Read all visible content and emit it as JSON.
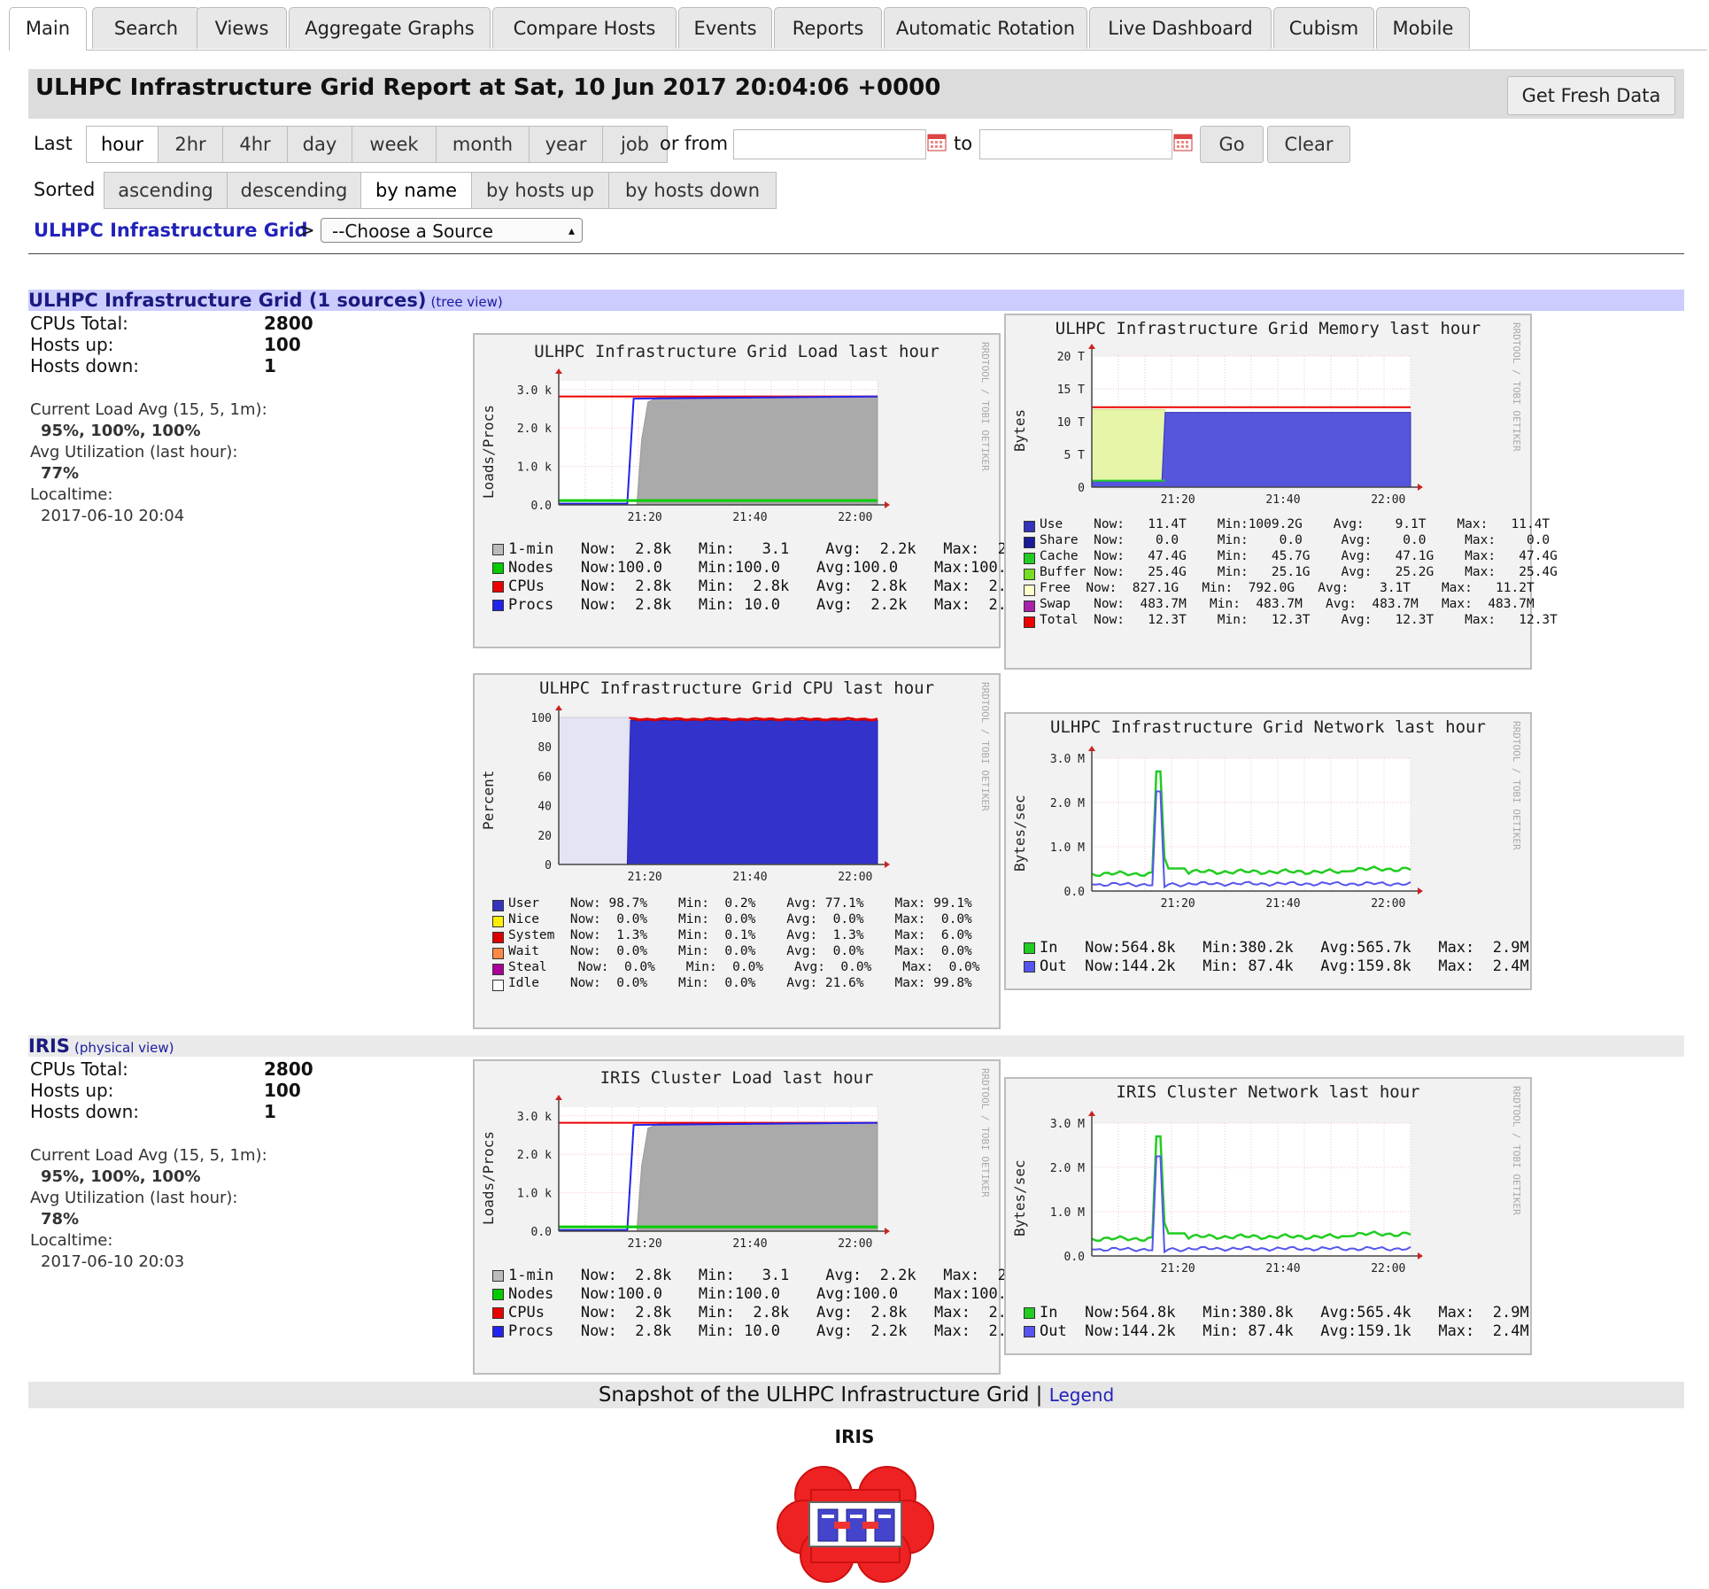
{
  "tabs": [
    {
      "label": "Main",
      "active": true
    },
    {
      "label": "Search"
    },
    {
      "label": "Views"
    },
    {
      "label": "Aggregate Graphs"
    },
    {
      "label": "Compare Hosts"
    },
    {
      "label": "Events"
    },
    {
      "label": "Reports"
    },
    {
      "label": "Automatic Rotation"
    },
    {
      "label": "Live Dashboard"
    },
    {
      "label": "Cubism"
    },
    {
      "label": "Mobile"
    }
  ],
  "header": {
    "title": "ULHPC Infrastructure Grid Report at Sat, 10 Jun 2017 20:04:06 +0000",
    "fresh_button": "Get Fresh Data"
  },
  "range": {
    "last_label": "Last",
    "options": [
      "hour",
      "2hr",
      "4hr",
      "day",
      "week",
      "month",
      "year",
      "job"
    ],
    "selected": "hour",
    "or_from": "or from",
    "to": "to",
    "from_value": "",
    "to_value": "",
    "go": "Go",
    "clear": "Clear"
  },
  "sort": {
    "label": "Sorted",
    "options": [
      "ascending",
      "descending",
      "by name",
      "by hosts up",
      "by hosts down"
    ],
    "selected": "by name"
  },
  "breadcrumb": {
    "grid": "ULHPC Infrastructure Grid",
    "sep": ">",
    "source_select": "--Choose a Source"
  },
  "grid_section": {
    "title": "ULHPC Infrastructure Grid (1 sources)",
    "link": "(tree view)",
    "cpus_label": "CPUs Total:",
    "cpus": "2800",
    "up_label": "Hosts up:",
    "up": "100",
    "down_label": "Hosts down:",
    "down": "1",
    "load_label": "Current Load Avg (15, 5, 1m):",
    "load": "95%, 100%, 100%",
    "util_label": "Avg Utilization (last hour):",
    "util": "77%",
    "time_label": "Localtime:",
    "time": "2017-06-10 20:04"
  },
  "iris_section": {
    "title": "IRIS",
    "link": "(physical view)",
    "cpus_label": "CPUs Total:",
    "cpus": "2800",
    "up_label": "Hosts up:",
    "up": "100",
    "down_label": "Hosts down:",
    "down": "1",
    "load_label": "Current Load Avg (15, 5, 1m):",
    "load": "95%, 100%, 100%",
    "util_label": "Avg Utilization (last hour):",
    "util": "78%",
    "time_label": "Localtime:",
    "time": "2017-06-10 20:03"
  },
  "graphs": {
    "side_text": "RRDTOOL / TOBI OETIKER",
    "x_ticks": [
      "21:20",
      "21:40",
      "22:00"
    ],
    "load": {
      "title": "ULHPC Infrastructure Grid Load last hour",
      "ylabel": "Loads/Procs",
      "yticks": [
        "3.0 k",
        "2.0 k",
        "1.0 k",
        "0.0"
      ],
      "legend": [
        {
          "name": "1-min",
          "color": "#bbbbbb",
          "text": "1-min   Now:  2.8k   Min:   3.1    Avg:  2.2k   Max:  2."
        },
        {
          "name": "Nodes",
          "color": "#00cc00",
          "text": "Nodes   Now:100.0    Min:100.0    Avg:100.0    Max:100."
        },
        {
          "name": "CPUs",
          "color": "#ee0000",
          "text": "CPUs    Now:  2.8k   Min:  2.8k   Avg:  2.8k   Max:  2."
        },
        {
          "name": "Procs",
          "color": "#2222ee",
          "text": "Procs   Now:  2.8k   Min: 10.0    Avg:  2.2k   Max:  2."
        }
      ]
    },
    "memory": {
      "title": "ULHPC Infrastructure Grid Memory last hour",
      "ylabel": "Bytes",
      "yticks": [
        "20 T",
        "15 T",
        "10 T",
        "5 T",
        "0"
      ],
      "legend": [
        {
          "name": "Use",
          "color": "#3333bb",
          "text": "Use    Now:   11.4T    Min:1009.2G    Avg:    9.1T    Max:   11.4T"
        },
        {
          "name": "Share",
          "color": "#1a1a99",
          "text": "Share  Now:    0.0     Min:    0.0     Avg:    0.0     Max:    0.0"
        },
        {
          "name": "Cache",
          "color": "#22cc22",
          "text": "Cache  Now:   47.4G    Min:   45.7G    Avg:   47.1G    Max:   47.4G"
        },
        {
          "name": "Buffer",
          "color": "#77dd22",
          "text": "Buffer Now:   25.4G    Min:   25.1G    Avg:   25.2G    Max:   25.4G"
        },
        {
          "name": "Free",
          "color": "#ffffcc",
          "text": "Free  Now:  827.1G   Min:  792.0G   Avg:    3.1T    Max:   11.2T"
        },
        {
          "name": "Swap",
          "color": "#aa22aa",
          "text": "Swap   Now:  483.7M   Min:  483.7M   Avg:  483.7M   Max:  483.7M"
        },
        {
          "name": "Total",
          "color": "#ee0000",
          "text": "Total  Now:   12.3T    Min:   12.3T    Avg:   12.3T    Max:   12.3T"
        }
      ]
    },
    "cpu": {
      "title": "ULHPC Infrastructure Grid CPU last hour",
      "ylabel": "Percent",
      "yticks": [
        "100",
        "80",
        "60",
        "40",
        "20",
        "0"
      ],
      "legend": [
        {
          "name": "User",
          "color": "#3333bb",
          "text": "User    Now: 98.7%    Min:  0.2%    Avg: 77.1%    Max: 99.1%"
        },
        {
          "name": "Nice",
          "color": "#ffee00",
          "text": "Nice    Now:  0.0%    Min:  0.0%    Avg:  0.0%    Max:  0.0%"
        },
        {
          "name": "System",
          "color": "#dd0000",
          "text": "System  Now:  1.3%    Min:  0.1%    Avg:  1.3%    Max:  6.0%"
        },
        {
          "name": "Wait",
          "color": "#ff8844",
          "text": "Wait    Now:  0.0%    Min:  0.0%    Avg:  0.0%    Max:  0.0%"
        },
        {
          "name": "Steal",
          "color": "#aa0099",
          "text": "Steal    Now:  0.0%    Min:  0.0%    Avg:  0.0%    Max:  0.0%"
        },
        {
          "name": "Idle",
          "color": "#ffffff",
          "text": "Idle    Now:  0.0%    Min:  0.0%    Avg: 21.6%    Max: 99.8%"
        }
      ]
    },
    "network": {
      "title": "ULHPC Infrastructure Grid Network last hour",
      "ylabel": "Bytes/sec",
      "yticks": [
        "3.0 M",
        "2.0 M",
        "1.0 M",
        "0.0"
      ],
      "legend": [
        {
          "name": "In",
          "color": "#22cc22",
          "text": "In   Now:564.8k   Min:380.2k   Avg:565.7k   Max:  2.9M"
        },
        {
          "name": "Out",
          "color": "#5555ee",
          "text": "Out  Now:144.2k   Min: 87.4k   Avg:159.8k   Max:  2.4M"
        }
      ]
    },
    "iris_load": {
      "title": "IRIS Cluster Load last hour",
      "ylabel": "Loads/Procs",
      "yticks": [
        "3.0 k",
        "2.0 k",
        "1.0 k",
        "0.0"
      ],
      "legend": [
        {
          "name": "1-min",
          "color": "#bbbbbb",
          "text": "1-min   Now:  2.8k   Min:   3.1    Avg:  2.2k   Max:  2."
        },
        {
          "name": "Nodes",
          "color": "#00cc00",
          "text": "Nodes   Now:100.0    Min:100.0    Avg:100.0    Max:100."
        },
        {
          "name": "CPUs",
          "color": "#ee0000",
          "text": "CPUs    Now:  2.8k   Min:  2.8k   Avg:  2.8k   Max:  2."
        },
        {
          "name": "Procs",
          "color": "#2222ee",
          "text": "Procs   Now:  2.8k   Min: 10.0    Avg:  2.2k   Max:  2."
        }
      ]
    },
    "iris_network": {
      "title": "IRIS Cluster Network last hour",
      "ylabel": "Bytes/sec",
      "yticks": [
        "3.0 M",
        "2.0 M",
        "1.0 M",
        "0.0"
      ],
      "legend": [
        {
          "name": "In",
          "color": "#22cc22",
          "text": "In   Now:564.8k   Min:380.8k   Avg:565.4k   Max:  2.9M"
        },
        {
          "name": "Out",
          "color": "#5555ee",
          "text": "Out  Now:144.2k   Min: 87.4k   Avg:159.1k   Max:  2.4M"
        }
      ]
    }
  },
  "footer": {
    "text": "Snapshot of the ULHPC Infrastructure Grid",
    "sep": "|",
    "legend_link": "Legend"
  },
  "snapshot": {
    "cluster": "IRIS",
    "icon": "cluster-cloud-icon"
  }
}
